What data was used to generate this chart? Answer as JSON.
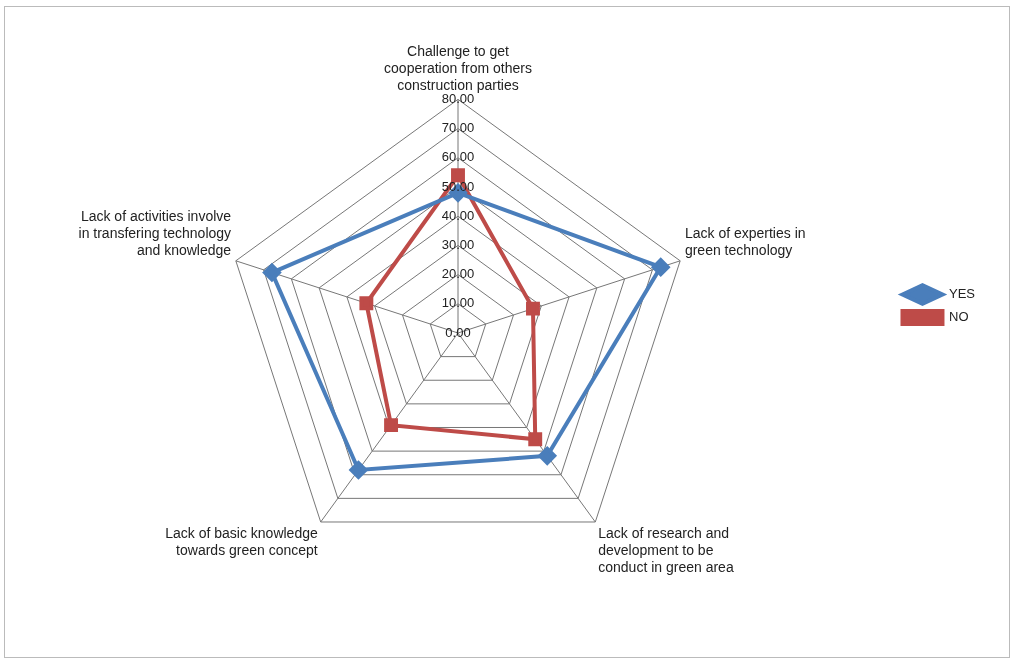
{
  "chart_data": {
    "type": "radar",
    "categories": [
      "Challenge to get\ncooperation from others\nconstruction parties",
      "Lack of experties in\ngreen technology",
      "Lack of research and\ndevelopment to be\nconduct in green area",
      "Lack of basic knowledge\ntowards green concept",
      "Lack of activities involve\nin transfering technology\nand knowledge"
    ],
    "series": [
      {
        "name": "YES",
        "color": "#4a7ebb",
        "marker": "diamond",
        "values": [
          48,
          73,
          52,
          58,
          67
        ]
      },
      {
        "name": "NO",
        "color": "#be4b48",
        "marker": "square",
        "values": [
          54,
          27,
          45,
          39,
          33
        ]
      }
    ],
    "ylim": [
      0,
      80
    ],
    "yticks": [
      {
        "value": 0,
        "label": "0.00"
      },
      {
        "value": 10,
        "label": "10.00"
      },
      {
        "value": 20,
        "label": "20.00"
      },
      {
        "value": 30,
        "label": "30.00"
      },
      {
        "value": 40,
        "label": "40.00"
      },
      {
        "value": 50,
        "label": "50.00"
      },
      {
        "value": 60,
        "label": "60.00"
      },
      {
        "value": 70,
        "label": "70.00"
      },
      {
        "value": 80,
        "label": "80.00"
      }
    ],
    "grid": true,
    "legend": "right"
  }
}
